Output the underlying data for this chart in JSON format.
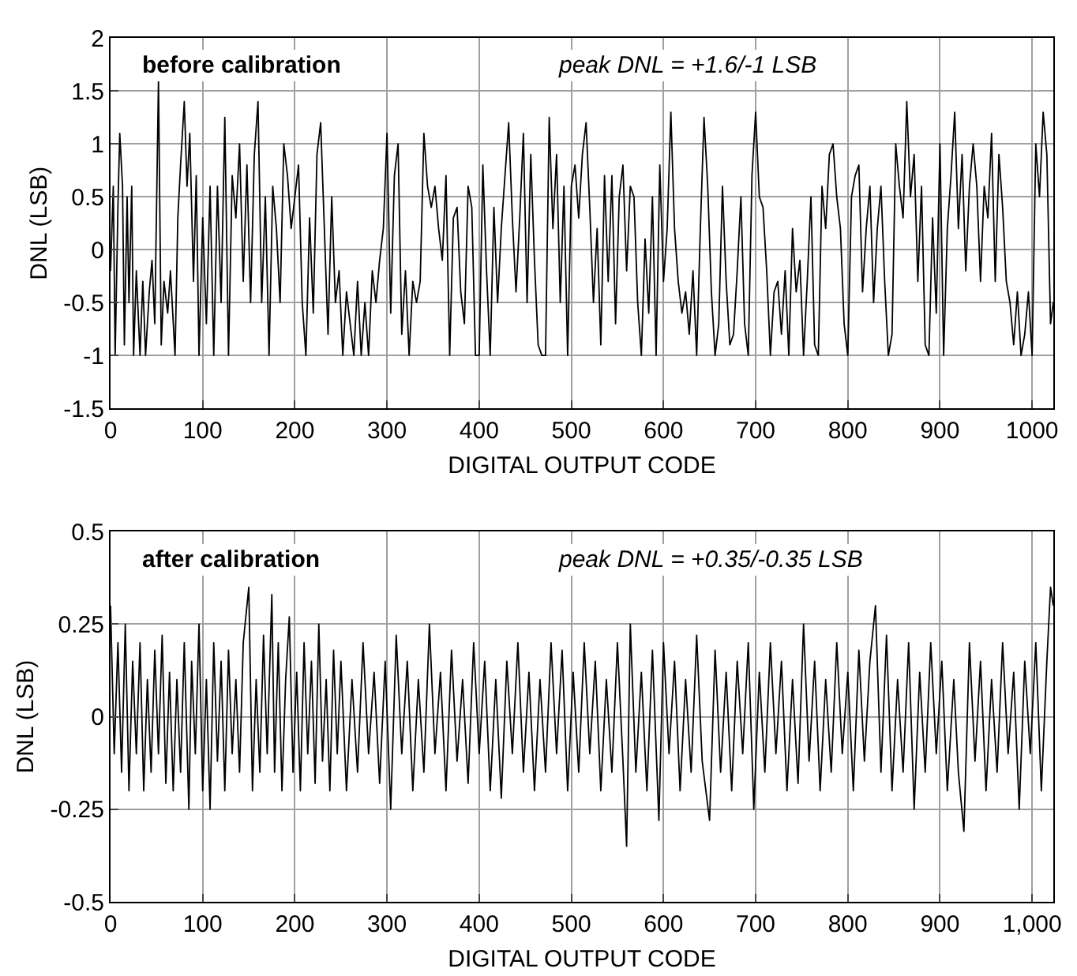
{
  "chart_data": [
    {
      "type": "line",
      "title": "before calibration",
      "xlabel": "DIGITAL OUTPUT CODE",
      "ylabel": "DNL (LSB)",
      "annotations": [
        "peak DNL = +1.6/-1 LSB"
      ],
      "xlim": [
        0,
        1023
      ],
      "ylim": [
        -1.5,
        2
      ],
      "xticks": [
        0,
        100,
        200,
        300,
        400,
        500,
        600,
        700,
        800,
        900,
        1000
      ],
      "yticks": [
        -1.5,
        -1,
        -0.5,
        0,
        0.5,
        1,
        1.5,
        2
      ],
      "grid": true,
      "marker": "none",
      "line_style": "solid",
      "series": [
        {
          "color": "#000000",
          "x": [
            0,
            3,
            5,
            8,
            10,
            13,
            15,
            18,
            20,
            23,
            25,
            28,
            32,
            35,
            38,
            42,
            45,
            48,
            52,
            55,
            58,
            62,
            65,
            70,
            73,
            76,
            80,
            83,
            86,
            90,
            93,
            96,
            100,
            104,
            108,
            112,
            116,
            120,
            124,
            128,
            132,
            136,
            140,
            144,
            148,
            152,
            156,
            160,
            164,
            168,
            172,
            176,
            180,
            184,
            188,
            192,
            196,
            200,
            204,
            208,
            212,
            216,
            220,
            224,
            228,
            232,
            236,
            240,
            244,
            248,
            252,
            256,
            260,
            264,
            268,
            272,
            276,
            280,
            284,
            288,
            292,
            296,
            300,
            304,
            308,
            312,
            316,
            320,
            324,
            328,
            332,
            336,
            340,
            344,
            348,
            352,
            356,
            360,
            364,
            368,
            372,
            376,
            380,
            384,
            388,
            392,
            396,
            400,
            404,
            408,
            412,
            416,
            420,
            424,
            428,
            432,
            436,
            440,
            444,
            448,
            452,
            456,
            460,
            464,
            468,
            472,
            476,
            480,
            484,
            488,
            492,
            496,
            500,
            504,
            508,
            512,
            516,
            520,
            524,
            528,
            532,
            536,
            540,
            544,
            548,
            552,
            556,
            560,
            564,
            568,
            572,
            576,
            580,
            584,
            588,
            592,
            596,
            600,
            604,
            608,
            612,
            616,
            620,
            624,
            628,
            632,
            636,
            640,
            644,
            648,
            652,
            656,
            660,
            664,
            668,
            672,
            676,
            680,
            684,
            688,
            692,
            696,
            700,
            704,
            708,
            712,
            716,
            720,
            724,
            728,
            732,
            736,
            740,
            744,
            748,
            752,
            756,
            760,
            764,
            768,
            772,
            776,
            780,
            784,
            788,
            792,
            796,
            800,
            804,
            808,
            812,
            816,
            820,
            824,
            828,
            832,
            836,
            840,
            844,
            848,
            852,
            856,
            860,
            864,
            868,
            872,
            876,
            880,
            884,
            888,
            892,
            896,
            900,
            904,
            908,
            912,
            916,
            920,
            924,
            928,
            932,
            936,
            940,
            944,
            948,
            952,
            956,
            960,
            964,
            968,
            972,
            976,
            980,
            984,
            988,
            992,
            996,
            1000,
            1004,
            1008,
            1012,
            1016,
            1020,
            1023
          ],
          "values": [
            -0.2,
            0.6,
            -1,
            0.4,
            1.1,
            0.6,
            -0.9,
            0.5,
            -0.5,
            0.6,
            -1,
            -0.2,
            -1,
            -0.3,
            -1,
            -0.4,
            -0.1,
            -0.7,
            1.6,
            -0.9,
            -0.3,
            -0.6,
            -0.2,
            -1,
            0.3,
            0.8,
            1.4,
            0.6,
            1.1,
            -0.3,
            0.7,
            -1,
            0.3,
            -0.7,
            0.6,
            -1,
            0.6,
            -0.5,
            1.25,
            -1,
            0.7,
            0.3,
            1.0,
            -0.3,
            0.8,
            -0.5,
            0.9,
            1.4,
            -0.5,
            0.5,
            -1,
            0.6,
            0.2,
            -0.5,
            1.0,
            0.7,
            0.2,
            0.5,
            0.8,
            -0.5,
            -1,
            0.3,
            -0.6,
            0.9,
            1.2,
            0.2,
            -0.8,
            0.5,
            -0.5,
            -0.2,
            -1,
            -0.4,
            -0.7,
            -1,
            -0.3,
            -1,
            -0.5,
            -1,
            -0.2,
            -0.5,
            -0.1,
            0.2,
            1.1,
            -0.6,
            0.7,
            1.0,
            -0.8,
            -0.2,
            -1,
            -0.3,
            -0.5,
            -0.3,
            1.1,
            0.6,
            0.4,
            0.6,
            0.2,
            -0.1,
            0.7,
            -1,
            0.3,
            0.4,
            -0.4,
            -0.7,
            0.6,
            0.4,
            -1,
            -1,
            0.8,
            -0.2,
            -1,
            0.4,
            -0.5,
            0.2,
            0.7,
            1.2,
            0.3,
            -0.4,
            0.3,
            1.1,
            -0.5,
            0.9,
            -0.1,
            -0.9,
            -1,
            -1,
            1.25,
            0.2,
            0.9,
            -0.5,
            0.6,
            -1,
            0.6,
            0.8,
            0.3,
            0.9,
            1.2,
            0.4,
            -0.5,
            0.2,
            -0.9,
            0.7,
            -0.3,
            0.7,
            -0.7,
            0.5,
            0.8,
            -0.2,
            0.6,
            0.5,
            -0.5,
            -1,
            0.1,
            -0.6,
            0.5,
            -1,
            0.8,
            -0.3,
            0.2,
            1.3,
            0.2,
            -0.3,
            -0.6,
            -0.4,
            -0.8,
            -0.2,
            -1,
            0.2,
            1.25,
            0.6,
            -0.4,
            -1,
            -0.7,
            0.6,
            -0.3,
            -0.9,
            -0.8,
            -0.2,
            0.5,
            -0.7,
            -1,
            0.7,
            1.3,
            0.5,
            0.4,
            -0.2,
            -1,
            -0.4,
            -0.3,
            -0.8,
            -0.2,
            -1,
            0.2,
            -0.4,
            -0.1,
            -1,
            -0.3,
            0.5,
            -0.9,
            -1,
            0.6,
            0.2,
            0.9,
            1.0,
            0.5,
            0.2,
            -0.7,
            -1,
            0.5,
            0.7,
            0.8,
            -0.4,
            0.2,
            0.6,
            -0.5,
            0.2,
            0.6,
            -0.3,
            -1,
            -0.8,
            1.0,
            0.6,
            0.3,
            1.4,
            0.5,
            0.9,
            -0.3,
            0.6,
            -0.9,
            -1,
            0.3,
            -0.6,
            1.0,
            -1,
            0.2,
            0.7,
            1.3,
            0.2,
            0.9,
            -0.2,
            0.6,
            1.0,
            0.6,
            -0.3,
            0.6,
            0.3,
            1.1,
            -0.3,
            0.9,
            0.4,
            -0.3,
            -0.5,
            -0.9,
            -0.4,
            -1,
            -0.8,
            -0.4,
            -1,
            1.0,
            0.5,
            1.3,
            0.9,
            -0.7,
            -0.5
          ]
        }
      ]
    },
    {
      "type": "line",
      "title": "after calibration",
      "xlabel": "DIGITAL OUTPUT CODE",
      "ylabel": "DNL (LSB)",
      "annotations": [
        "peak DNL = +0.35/-0.35 LSB"
      ],
      "xlim": [
        0,
        1023
      ],
      "ylim": [
        -0.5,
        0.5
      ],
      "xticks": [
        0,
        100,
        200,
        300,
        400,
        500,
        600,
        700,
        800,
        900,
        {
          "value": 1000,
          "label": "1,000"
        }
      ],
      "yticks": [
        -0.5,
        -0.25,
        0,
        0.25,
        0.5
      ],
      "grid": true,
      "marker": "none",
      "line_style": "solid",
      "series": [
        {
          "color": "#000000",
          "x": [
            0,
            4,
            8,
            12,
            16,
            20,
            24,
            28,
            32,
            36,
            40,
            44,
            48,
            52,
            56,
            60,
            64,
            68,
            72,
            76,
            80,
            85,
            88,
            92,
            96,
            100,
            104,
            108,
            112,
            116,
            120,
            124,
            128,
            132,
            136,
            140,
            144,
            150,
            154,
            158,
            162,
            166,
            170,
            175,
            178,
            182,
            186,
            190,
            194,
            198,
            202,
            206,
            210,
            214,
            218,
            222,
            226,
            230,
            234,
            238,
            242,
            246,
            250,
            256,
            262,
            268,
            274,
            280,
            286,
            292,
            298,
            304,
            310,
            316,
            322,
            328,
            334,
            340,
            346,
            352,
            358,
            364,
            370,
            376,
            382,
            388,
            394,
            400,
            406,
            412,
            418,
            424,
            430,
            436,
            442,
            448,
            454,
            460,
            466,
            472,
            478,
            484,
            490,
            496,
            502,
            508,
            514,
            520,
            526,
            532,
            538,
            544,
            550,
            556,
            560,
            564,
            570,
            576,
            582,
            588,
            595,
            600,
            606,
            612,
            618,
            624,
            630,
            636,
            642,
            650,
            656,
            662,
            668,
            674,
            680,
            686,
            692,
            698,
            704,
            710,
            716,
            722,
            728,
            734,
            740,
            746,
            752,
            758,
            764,
            770,
            776,
            782,
            788,
            794,
            800,
            806,
            812,
            818,
            824,
            830,
            836,
            842,
            848,
            854,
            860,
            866,
            872,
            878,
            884,
            890,
            896,
            902,
            908,
            915,
            920,
            926,
            932,
            938,
            944,
            950,
            956,
            962,
            968,
            974,
            980,
            986,
            992,
            998,
            1004,
            1010,
            1016,
            1020,
            1023
          ],
          "values": [
            0.3,
            -0.1,
            0.2,
            -0.15,
            0.25,
            -0.2,
            0.15,
            -0.1,
            0.2,
            -0.2,
            0.1,
            -0.15,
            0.18,
            -0.1,
            0.22,
            -0.18,
            0.12,
            -0.2,
            0.1,
            -0.15,
            0.2,
            -0.25,
            0.15,
            -0.1,
            0.25,
            -0.2,
            0.1,
            -0.25,
            0.2,
            -0.12,
            0.15,
            -0.2,
            0.18,
            -0.1,
            0.1,
            -0.15,
            0.2,
            0.35,
            -0.2,
            0.1,
            -0.15,
            0.22,
            -0.1,
            0.33,
            -0.15,
            0.2,
            -0.2,
            0.1,
            0.27,
            -0.15,
            0.12,
            -0.2,
            0.2,
            -0.1,
            0.15,
            -0.18,
            0.25,
            -0.12,
            0.1,
            -0.2,
            0.18,
            -0.1,
            0.15,
            -0.2,
            0.1,
            -0.15,
            0.2,
            -0.1,
            0.12,
            -0.18,
            0.15,
            -0.25,
            0.22,
            -0.1,
            0.15,
            -0.2,
            0.1,
            -0.15,
            0.25,
            -0.1,
            0.12,
            -0.2,
            0.18,
            -0.12,
            0.1,
            -0.18,
            0.2,
            -0.1,
            0.15,
            -0.2,
            0.1,
            -0.22,
            0.15,
            -0.1,
            0.2,
            -0.15,
            0.12,
            -0.2,
            0.1,
            -0.15,
            0.2,
            -0.1,
            0.18,
            -0.2,
            0.12,
            -0.15,
            0.2,
            -0.1,
            0.15,
            -0.2,
            0.1,
            -0.15,
            0.2,
            -0.12,
            -0.35,
            0.25,
            -0.15,
            0.12,
            -0.2,
            0.18,
            -0.28,
            0.2,
            -0.1,
            0.15,
            -0.2,
            0.1,
            -0.15,
            0.22,
            -0.12,
            -0.28,
            0.18,
            -0.15,
            0.12,
            -0.2,
            0.15,
            -0.1,
            0.2,
            -0.25,
            0.12,
            -0.15,
            0.2,
            -0.1,
            0.15,
            -0.2,
            0.1,
            -0.18,
            0.25,
            -0.12,
            0.15,
            -0.2,
            0.1,
            -0.15,
            0.2,
            -0.1,
            0.12,
            -0.2,
            0.18,
            -0.12,
            0.15,
            0.3,
            -0.15,
            0.22,
            -0.2,
            0.1,
            -0.15,
            0.2,
            -0.25,
            0.12,
            -0.15,
            0.2,
            -0.1,
            0.15,
            -0.2,
            0.1,
            -0.15,
            -0.31,
            0.2,
            -0.12,
            0.15,
            -0.2,
            0.1,
            -0.15,
            0.2,
            -0.1,
            0.12,
            -0.25,
            0.15,
            -0.1,
            0.2,
            -0.2,
            0.15,
            0.35,
            0.3
          ]
        }
      ]
    }
  ]
}
